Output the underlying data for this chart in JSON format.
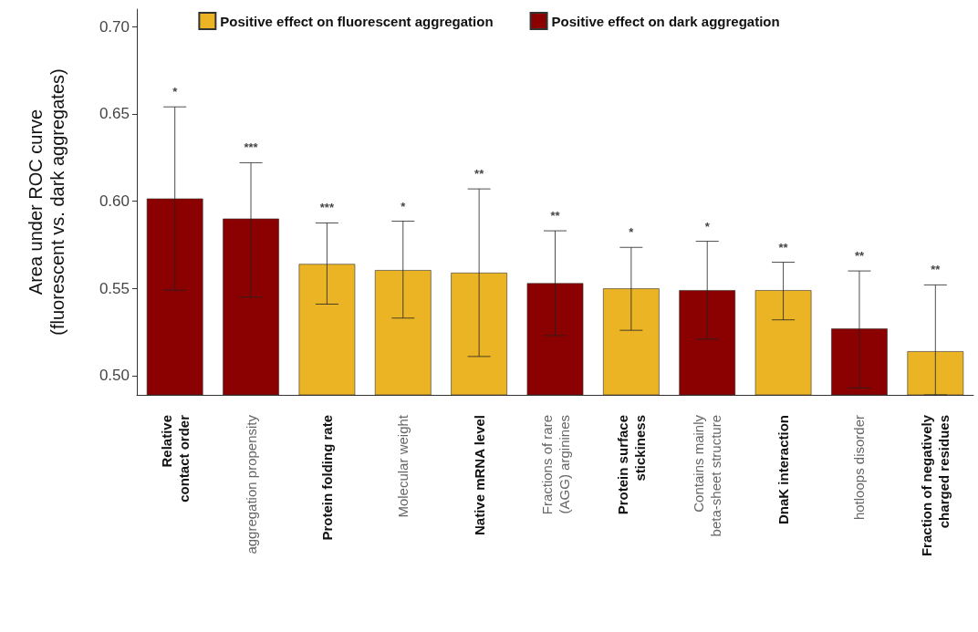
{
  "chart_data": {
    "type": "bar",
    "ylabel": "Area under ROC curve\n(fluorescent vs. dark aggregates)",
    "categories": [
      "Relative\ncontact order",
      "aggregation propensity",
      "Protein folding rate",
      "Molecular weight",
      "Native mRNA level",
      "Fractions of rare\n(AGG) arginines",
      "Protein surface\nstickiness",
      "Contains mainly\nbeta-sheet structure",
      "DnaK interaction",
      "hotloops disorder",
      "Fraction of negatively\ncharged residues"
    ],
    "series": [
      {
        "name": "Positive effect on fluorescent aggregation",
        "color": "#ebb425",
        "values": [
          null,
          null,
          0.564,
          0.5605,
          0.559,
          null,
          0.55,
          null,
          0.549,
          null,
          0.514
        ],
        "errors": [
          null,
          null,
          [
            0.541,
            0.5875
          ],
          [
            0.533,
            0.5885
          ],
          [
            0.511,
            0.607
          ],
          null,
          [
            0.526,
            0.5735
          ],
          null,
          [
            0.532,
            0.565
          ],
          null,
          [
            0.489,
            0.552
          ]
        ]
      },
      {
        "name": "Positive effect on dark aggregation",
        "color": "#8b0000",
        "values": [
          0.6015,
          0.59,
          null,
          null,
          null,
          0.553,
          null,
          0.549,
          null,
          0.527,
          null
        ],
        "errors": [
          [
            0.549,
            0.654
          ],
          [
            0.545,
            0.622
          ],
          null,
          null,
          null,
          [
            0.523,
            0.583
          ],
          null,
          [
            0.521,
            0.577
          ],
          null,
          [
            0.493,
            0.56
          ],
          null
        ]
      }
    ],
    "ylim": [
      0.489,
      0.71
    ],
    "yticks": [
      {
        "value": 0.5,
        "label": "0.50"
      },
      {
        "value": 0.55,
        "label": "0.55"
      },
      {
        "value": 0.6,
        "label": "0.60"
      },
      {
        "value": 0.65,
        "label": "0.65"
      },
      {
        "value": 0.7,
        "label": "0.70"
      }
    ],
    "grid": false,
    "legend": "top",
    "annotations": [
      {
        "text": "*",
        "x": "Relative\ncontact order",
        "y": 0.654
      },
      {
        "text": "***",
        "x": "aggregation propensity",
        "y": 0.622
      },
      {
        "text": "***",
        "x": "Protein folding rate",
        "y": 0.5875
      },
      {
        "text": "*",
        "x": "Molecular weight",
        "y": 0.5885
      },
      {
        "text": "**",
        "x": "Native mRNA level",
        "y": 0.607
      },
      {
        "text": "**",
        "x": "Fractions of rare\n(AGG) arginines",
        "y": 0.583
      },
      {
        "text": "*",
        "x": "Protein surface\nstickiness",
        "y": 0.5735
      },
      {
        "text": "*",
        "x": "Contains mainly\nbeta-sheet structure",
        "y": 0.577
      },
      {
        "text": "**",
        "x": "DnaK interaction",
        "y": 0.565
      },
      {
        "text": "**",
        "x": "hotloops disorder",
        "y": 0.56
      },
      {
        "text": "**",
        "x": "Fraction of negatively\ncharged residues",
        "y": 0.552
      }
    ]
  }
}
